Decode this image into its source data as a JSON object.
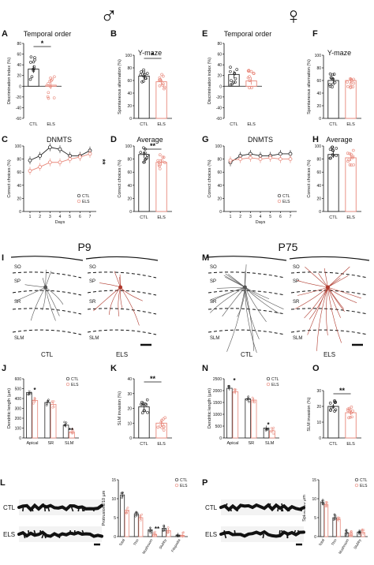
{
  "figure": {
    "sex_symbols": {
      "male": "♂",
      "female": "♀"
    },
    "colors": {
      "ctl": "#222222",
      "els": "#e8877a",
      "els_dark": "#c0392b",
      "neuron_ctl": "#555555",
      "neuron_els": "#b03a2e"
    }
  },
  "panels": {
    "A": {
      "letter": "A",
      "title": "Temporal order",
      "ylabel": "Discrimination index (%)",
      "yticks": [
        "80",
        "60",
        "40",
        "20",
        "0",
        "-20",
        "-40",
        "-60"
      ],
      "xlabels": [
        "CTL",
        "ELS"
      ],
      "sig": "*"
    },
    "B": {
      "letter": "B",
      "title": "Y-maze",
      "ylabel": "Spontaneous alternation (%)",
      "yticks": [
        "100",
        "80",
        "60",
        "40",
        "20",
        "0"
      ],
      "xlabels": [
        "CTL",
        "ELS"
      ],
      "sig": "*"
    },
    "C": {
      "letter": "C",
      "title": "DNMTS",
      "ylabel": "Correct choices (%)",
      "xlabel": "Days",
      "yticks": [
        "100",
        "80",
        "60",
        "40",
        "20",
        "0"
      ],
      "xticks": [
        "1",
        "2",
        "3",
        "4",
        "5",
        "6",
        "7"
      ],
      "legend": [
        "CTL",
        "ELS"
      ],
      "sig": "**"
    },
    "D": {
      "letter": "D",
      "title": "Average",
      "ylabel": "Correct choices (%)",
      "yticks": [
        "100",
        "80",
        "60",
        "40",
        "20",
        "0"
      ],
      "xlabels": [
        "CTL",
        "ELS"
      ],
      "sig": "**"
    },
    "E": {
      "letter": "E",
      "title": "Temporal order",
      "ylabel": "Discrimination index (%)",
      "yticks": [
        "80",
        "60",
        "40",
        "20",
        "0",
        "-20",
        "-40",
        "-60"
      ],
      "xlabels": [
        "CTL",
        "ELS"
      ]
    },
    "F": {
      "letter": "F",
      "title": "Y-maze",
      "ylabel": "Spontaneous alternation (%)",
      "yticks": [
        "100",
        "80",
        "60",
        "40",
        "20",
        "0"
      ],
      "xlabels": [
        "CTL",
        "ELS"
      ]
    },
    "G": {
      "letter": "G",
      "title": "DNMTS",
      "ylabel": "Correct choices (%)",
      "xlabel": "Days",
      "yticks": [
        "100",
        "80",
        "60",
        "40",
        "20",
        "0"
      ],
      "xticks": [
        "1",
        "2",
        "3",
        "4",
        "5",
        "6",
        "7"
      ],
      "legend": [
        "CTL",
        "ELS"
      ]
    },
    "H": {
      "letter": "H",
      "title": "Average",
      "ylabel": "Correct choices (%)",
      "yticks": [
        "100",
        "80",
        "60",
        "40",
        "20",
        "0"
      ],
      "xlabels": [
        "CTL",
        "ELS"
      ]
    },
    "I": {
      "letter": "I",
      "title": "P9",
      "layers_ctl": [
        "SO",
        "SP",
        "SR",
        "SLM"
      ],
      "layers_els": [
        "SO",
        "SP",
        "SR",
        "SLM"
      ],
      "labels": [
        "CTL",
        "ELS"
      ]
    },
    "M": {
      "letter": "M",
      "title": "P75",
      "layers_ctl": [
        "SO",
        "SP",
        "SR",
        "SLM"
      ],
      "layers_els": [
        "SO",
        "SP",
        "SR",
        "SLM"
      ],
      "labels": [
        "CTL",
        "ELS"
      ]
    },
    "J": {
      "letter": "J",
      "ylabel": "Dendritic length (µm)",
      "yticks": [
        "600",
        "500",
        "400",
        "300",
        "200",
        "100",
        "0"
      ],
      "xlabels": [
        "Apical",
        "SR",
        "SLM"
      ],
      "legend": [
        "CTL",
        "ELS"
      ],
      "sig": [
        "*",
        "**"
      ]
    },
    "K": {
      "letter": "K",
      "ylabel": "SLM invasion (%)",
      "yticks": [
        "40",
        "30",
        "20",
        "10",
        "0"
      ],
      "xlabels": [
        "CTL",
        "ELS"
      ],
      "sig": "**"
    },
    "N": {
      "letter": "N",
      "ylabel": "Dendritic length (µm)",
      "yticks": [
        "2500",
        "2000",
        "1500",
        "1000",
        "500",
        "0"
      ],
      "xlabels": [
        "Apical",
        "SR",
        "SLM"
      ],
      "legend": [
        "CTL",
        "ELS"
      ],
      "sig": [
        "*",
        "*"
      ]
    },
    "O": {
      "letter": "O",
      "ylabel": "SLM invasion (%)",
      "yticks": [
        "30",
        "20",
        "10",
        "0"
      ],
      "xlabels": [
        "CTL",
        "ELS"
      ],
      "sig": "**"
    },
    "L": {
      "letter": "L",
      "rows": [
        "CTL",
        "ELS"
      ],
      "ylabel": "Protrusions/10 µm",
      "yticks": [
        "15",
        "10",
        "5",
        "0"
      ],
      "xlabels": [
        "Total",
        "Thin",
        "Mushroom",
        "Stubby",
        "Filopodia"
      ],
      "legend": [
        "CTL",
        "ELS"
      ],
      "sig": "**"
    },
    "P": {
      "letter": "P",
      "rows": [
        "CTL",
        "ELS"
      ],
      "ylabel": "Spines/10 µm",
      "yticks": [
        "15",
        "10",
        "5",
        "0"
      ],
      "xlabels": [
        "Total",
        "Thin",
        "Mushroom",
        "Stubby"
      ],
      "legend": [
        "CTL",
        "ELS"
      ]
    }
  },
  "chart_data": [
    {
      "panel": "A",
      "type": "bar",
      "categories": [
        "CTL",
        "ELS"
      ],
      "values": [
        32,
        2
      ],
      "ylim": [
        -60,
        80
      ]
    },
    {
      "panel": "B",
      "type": "bar",
      "categories": [
        "CTL",
        "ELS"
      ],
      "values": [
        67,
        58
      ],
      "ylim": [
        0,
        100
      ]
    },
    {
      "panel": "C",
      "type": "line",
      "x": [
        1,
        2,
        3,
        4,
        5,
        6,
        7
      ],
      "xlabel": "Days",
      "ylabel": "Correct choices (%)",
      "ylim": [
        0,
        100
      ],
      "series": [
        {
          "name": "CTL",
          "values": [
            78,
            85,
            98,
            95,
            85,
            85,
            93
          ]
        },
        {
          "name": "ELS",
          "values": [
            62,
            68,
            75,
            75,
            80,
            83,
            88
          ]
        }
      ]
    },
    {
      "panel": "D",
      "type": "bar",
      "categories": [
        "CTL",
        "ELS"
      ],
      "values": [
        87,
        75
      ],
      "ylim": [
        0,
        100
      ]
    },
    {
      "panel": "E",
      "type": "bar",
      "categories": [
        "CTL",
        "ELS"
      ],
      "values": [
        22,
        10
      ],
      "ylim": [
        -60,
        80
      ]
    },
    {
      "panel": "F",
      "type": "bar",
      "categories": [
        "CTL",
        "ELS"
      ],
      "values": [
        60,
        60
      ],
      "ylim": [
        0,
        100
      ]
    },
    {
      "panel": "G",
      "type": "line",
      "x": [
        1,
        2,
        3,
        4,
        5,
        6,
        7
      ],
      "xlabel": "Days",
      "ylabel": "Correct choices (%)",
      "ylim": [
        0,
        100
      ],
      "series": [
        {
          "name": "CTL",
          "values": [
            75,
            85,
            88,
            85,
            85,
            88,
            88
          ]
        },
        {
          "name": "ELS",
          "values": [
            78,
            80,
            82,
            80,
            82,
            80,
            80
          ]
        }
      ]
    },
    {
      "panel": "H",
      "type": "bar",
      "categories": [
        "CTL",
        "ELS"
      ],
      "values": [
        87,
        82
      ],
      "ylim": [
        0,
        100
      ]
    },
    {
      "panel": "J",
      "type": "bar",
      "categories": [
        "Apical",
        "SR",
        "SLM"
      ],
      "ylim": [
        0,
        600
      ],
      "series": [
        {
          "name": "CTL",
          "values": [
            460,
            360,
            130
          ]
        },
        {
          "name": "ELS",
          "values": [
            380,
            340,
            60
          ]
        }
      ]
    },
    {
      "panel": "K",
      "type": "bar",
      "categories": [
        "CTL",
        "ELS"
      ],
      "values": [
        21,
        10
      ],
      "ylim": [
        0,
        40
      ]
    },
    {
      "panel": "N",
      "type": "bar",
      "categories": [
        "Apical",
        "SR",
        "SLM"
      ],
      "ylim": [
        0,
        2500
      ],
      "series": [
        {
          "name": "CTL",
          "values": [
            2100,
            1650,
            420
          ]
        },
        {
          "name": "ELS",
          "values": [
            1950,
            1600,
            300
          ]
        }
      ]
    },
    {
      "panel": "O",
      "type": "bar",
      "categories": [
        "CTL",
        "ELS"
      ],
      "values": [
        20,
        16
      ],
      "ylim": [
        0,
        30
      ]
    },
    {
      "panel": "L",
      "type": "bar",
      "categories": [
        "Total",
        "Thin",
        "Mushroom",
        "Stubby",
        "Filopodia"
      ],
      "ylim": [
        0,
        15
      ],
      "series": [
        {
          "name": "CTL",
          "values": [
            11,
            6,
            1.8,
            2.2,
            0.4
          ]
        },
        {
          "name": "ELS",
          "values": [
            7,
            5,
            0.6,
            1.6,
            0.3
          ]
        }
      ]
    },
    {
      "panel": "P",
      "type": "bar",
      "categories": [
        "Total",
        "Thin",
        "Mushroom",
        "Stubby"
      ],
      "ylim": [
        0,
        15
      ],
      "series": [
        {
          "name": "CTL",
          "values": [
            9,
            5,
            1,
            1.2
          ]
        },
        {
          "name": "ELS",
          "values": [
            8.5,
            4.5,
            0.9,
            1.1
          ]
        }
      ]
    }
  ]
}
